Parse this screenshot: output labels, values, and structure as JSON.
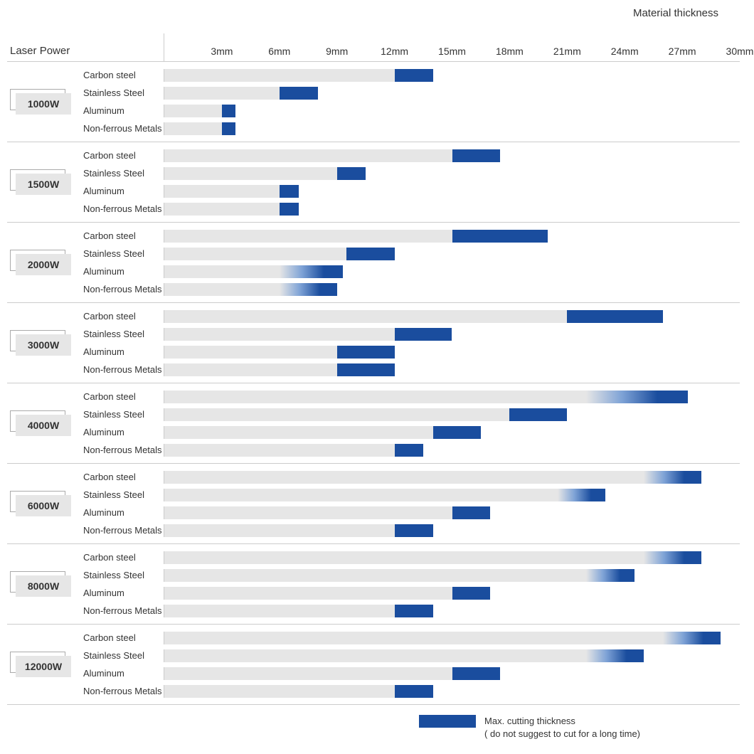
{
  "title_right": "Material thickness",
  "header_left": "Laser Power",
  "x_axis": {
    "min": 0,
    "max": 30,
    "tick_step": 3,
    "ticks": [
      3,
      6,
      9,
      12,
      15,
      18,
      21,
      24,
      27,
      30
    ],
    "unit_suffix": "mm"
  },
  "colors": {
    "base_bar": "#e6e6e6",
    "max_bar": "#1a4d9e",
    "gradient_mid": "#7fa3d6",
    "grid_line": "#cccccc",
    "text": "#333333",
    "background": "#ffffff",
    "badge_bg": "#e6e6e6",
    "badge_border": "#aaaaaa"
  },
  "groups": [
    {
      "power": "1000W",
      "materials": [
        {
          "name": "Carbon steel",
          "base": 12,
          "max": 14,
          "gradient": false
        },
        {
          "name": "Stainless Steel",
          "base": 6,
          "max": 8,
          "gradient": false
        },
        {
          "name": "Aluminum",
          "base": 3,
          "max": 3.7,
          "gradient": false
        },
        {
          "name": "Non-ferrous Metals",
          "base": 3,
          "max": 3.7,
          "gradient": false
        }
      ]
    },
    {
      "power": "1500W",
      "materials": [
        {
          "name": "Carbon steel",
          "base": 15,
          "max": 17.5,
          "gradient": false
        },
        {
          "name": "Stainless Steel",
          "base": 9,
          "max": 10.5,
          "gradient": false
        },
        {
          "name": "Aluminum",
          "base": 6,
          "max": 7,
          "gradient": false
        },
        {
          "name": "Non-ferrous Metals",
          "base": 6,
          "max": 7,
          "gradient": false
        }
      ]
    },
    {
      "power": "2000W",
      "materials": [
        {
          "name": "Carbon steel",
          "base": 15,
          "max": 20,
          "gradient": false
        },
        {
          "name": "Stainless Steel",
          "base": 9.5,
          "max": 12,
          "gradient": false
        },
        {
          "name": "Aluminum",
          "base": 6,
          "max": 9.3,
          "gradient": true
        },
        {
          "name": "Non-ferrous Metals",
          "base": 6,
          "max": 9,
          "gradient": true
        }
      ]
    },
    {
      "power": "3000W",
      "materials": [
        {
          "name": "Carbon steel",
          "base": 21,
          "max": 26,
          "gradient": false
        },
        {
          "name": "Stainless Steel",
          "base": 12,
          "max": 15,
          "gradient": false
        },
        {
          "name": "Aluminum",
          "base": 9,
          "max": 12,
          "gradient": false
        },
        {
          "name": "Non-ferrous Metals",
          "base": 9,
          "max": 12,
          "gradient": false
        }
      ]
    },
    {
      "power": "4000W",
      "materials": [
        {
          "name": "Carbon steel",
          "base": 22,
          "max": 27.3,
          "gradient": true
        },
        {
          "name": "Stainless Steel",
          "base": 18,
          "max": 21,
          "gradient": false
        },
        {
          "name": "Aluminum",
          "base": 14,
          "max": 16.5,
          "gradient": false
        },
        {
          "name": "Non-ferrous Metals",
          "base": 12,
          "max": 13.5,
          "gradient": false
        }
      ]
    },
    {
      "power": "6000W",
      "materials": [
        {
          "name": "Carbon steel",
          "base": 25,
          "max": 28,
          "gradient": true
        },
        {
          "name": "Stainless Steel",
          "base": 20.5,
          "max": 23,
          "gradient": true
        },
        {
          "name": "Aluminum",
          "base": 15,
          "max": 17,
          "gradient": false
        },
        {
          "name": "Non-ferrous Metals",
          "base": 12,
          "max": 14,
          "gradient": false
        }
      ]
    },
    {
      "power": "8000W",
      "materials": [
        {
          "name": "Carbon steel",
          "base": 25,
          "max": 28,
          "gradient": true
        },
        {
          "name": "Stainless Steel",
          "base": 22,
          "max": 24.5,
          "gradient": true
        },
        {
          "name": "Aluminum",
          "base": 15,
          "max": 17,
          "gradient": false
        },
        {
          "name": "Non-ferrous Metals",
          "base": 12,
          "max": 14,
          "gradient": false
        }
      ]
    },
    {
      "power": "12000W",
      "materials": [
        {
          "name": "Carbon steel",
          "base": 26,
          "max": 29,
          "gradient": true
        },
        {
          "name": "Stainless Steel",
          "base": 22,
          "max": 25,
          "gradient": true
        },
        {
          "name": "Aluminum",
          "base": 15,
          "max": 17.5,
          "gradient": false
        },
        {
          "name": "Non-ferrous Metals",
          "base": 12,
          "max": 14,
          "gradient": false
        }
      ]
    }
  ],
  "legend": {
    "swatch_color": "#1a4d9e",
    "line1": "Max. cutting thickness",
    "line2": "( do not suggest to cut for a long time)"
  }
}
